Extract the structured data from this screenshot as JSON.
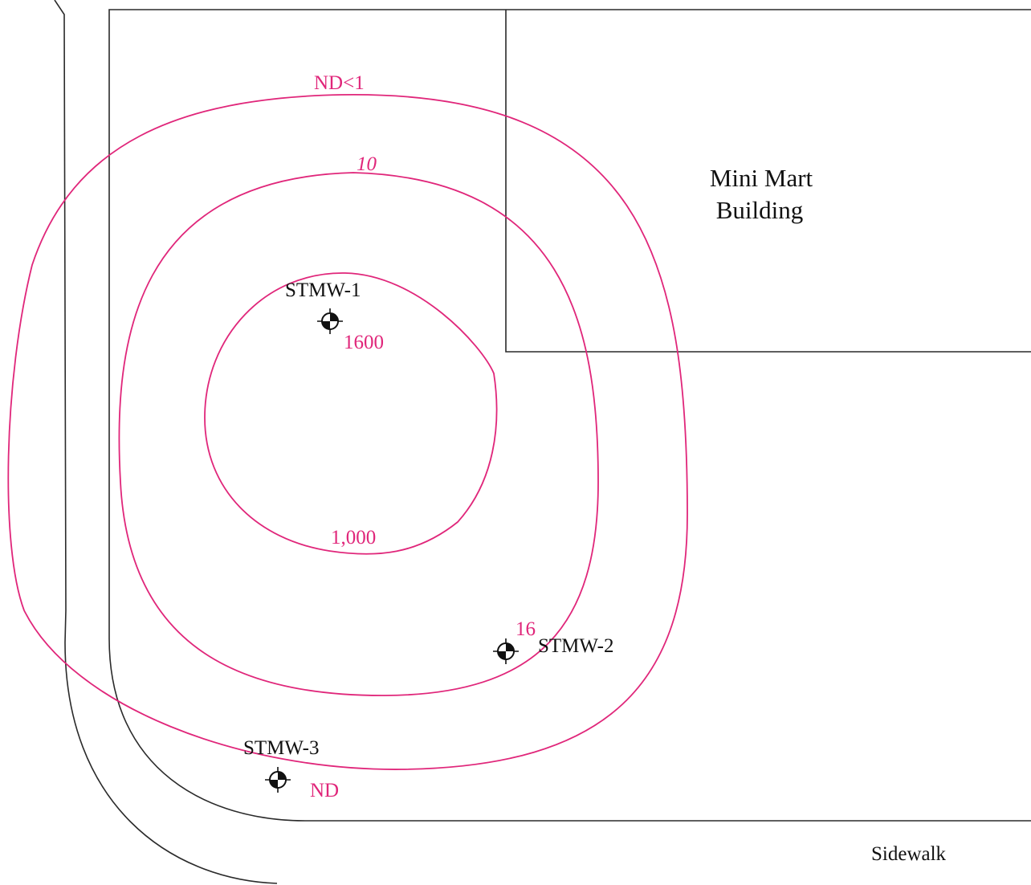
{
  "colors": {
    "contour": "#e0267a",
    "linework": "#2a2a2a",
    "background": "#ffffff"
  },
  "building": {
    "line1": "Mini Mart",
    "line2": "Building"
  },
  "sidewalk_label": "Sidewalk",
  "contours": {
    "nd_lt_1": "ND<1",
    "ten": "10",
    "thousand": "1,000"
  },
  "wells": {
    "stmw1": {
      "name": "STMW-1",
      "value": "1600",
      "icon": "monitoring-well-icon"
    },
    "stmw2": {
      "name": "STMW-2",
      "value": "16",
      "icon": "monitoring-well-icon"
    },
    "stmw3": {
      "name": "STMW-3",
      "value": "ND",
      "icon": "monitoring-well-icon"
    }
  }
}
